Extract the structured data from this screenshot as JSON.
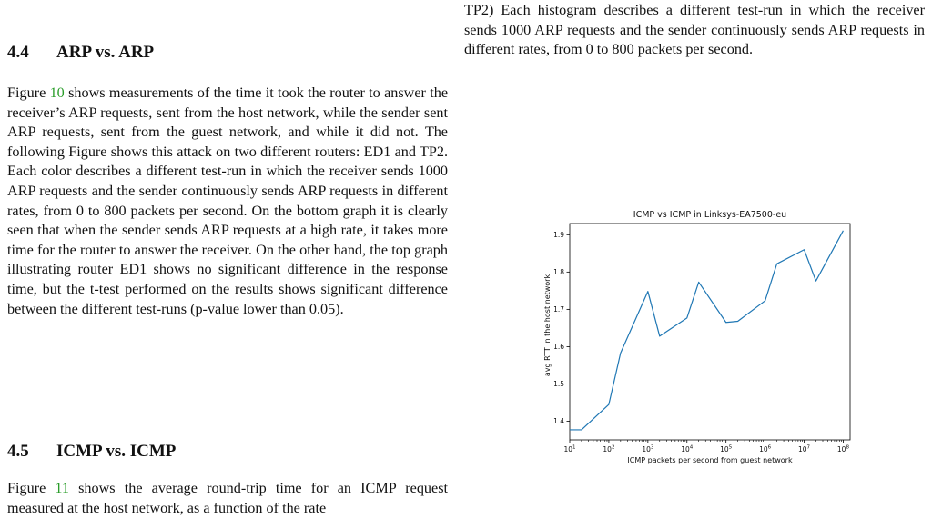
{
  "left": {
    "section_44": {
      "number": "4.4",
      "title": "ARP vs. ARP"
    },
    "para_44": {
      "pre": "Figure ",
      "link": "10",
      "text": " shows measurements of the time it took the router to answer the receiver’s ARP requests, sent from the host network, while the sender sent ARP requests, sent from the guest network, and while it did not. The following Figure shows this attack on two different routers: ED1 and TP2. Each color describes a different test-run in which the receiver sends 1000 ARP requests and the sender continuously sends ARP requests in different rates, from 0 to 800 packets per second. On the bottom graph it is clearly seen that when the sender sends ARP requests at a high rate, it takes more time for the router to answer the receiver. On the other hand, the top graph illustrating router ED1 shows no significant difference in the response time, but the t-test performed on the results shows significant difference between the different test-runs (p-value lower than 0.05)."
    },
    "section_45": {
      "number": "4.5",
      "title": "ICMP vs. ICMP"
    },
    "para_45": {
      "pre": "Figure ",
      "link": "11",
      "text": " shows the average round-trip time for an ICMP request measured at the host network, as a function of the rate"
    }
  },
  "right": {
    "para": "TP2) Each histogram describes a different test-run in which the receiver sends 1000 ARP requests and the sender continuously sends ARP requests in different rates, from 0 to 800 packets per second."
  },
  "colors": {
    "line": "#1f77b4",
    "link": "#2a9d2a"
  },
  "chart_data": {
    "type": "line",
    "title": "ICMP vs ICMP in Linksys-EA7500-eu",
    "xlabel": "ICMP packets per second from guest network",
    "ylabel": "avg RTT in the host network",
    "xscale": "log",
    "xlim": [
      10,
      150000000
    ],
    "ylim": [
      1.35,
      1.93
    ],
    "xticks": [
      10,
      100,
      1000,
      10000,
      100000,
      1000000,
      10000000,
      100000000
    ],
    "xtick_labels": [
      [
        "10",
        "1"
      ],
      [
        "10",
        "2"
      ],
      [
        "10",
        "3"
      ],
      [
        "10",
        "4"
      ],
      [
        "10",
        "5"
      ],
      [
        "10",
        "6"
      ],
      [
        "10",
        "7"
      ],
      [
        "10",
        "8"
      ]
    ],
    "yticks": [
      1.4,
      1.5,
      1.6,
      1.7,
      1.8,
      1.9
    ],
    "ytick_labels": [
      "1.4",
      "1.5",
      "1.6",
      "1.7",
      "1.8",
      "1.9"
    ],
    "grid": false,
    "series": [
      {
        "x": [
          10,
          20,
          100,
          200,
          1000,
          2000,
          10000,
          20000,
          100000,
          200000,
          1000000,
          2000000,
          10000000,
          20000000,
          100000000
        ],
        "y": [
          1.377,
          1.377,
          1.445,
          1.583,
          1.748,
          1.628,
          1.677,
          1.773,
          1.665,
          1.668,
          1.723,
          1.822,
          1.86,
          1.776,
          1.911
        ]
      }
    ]
  }
}
